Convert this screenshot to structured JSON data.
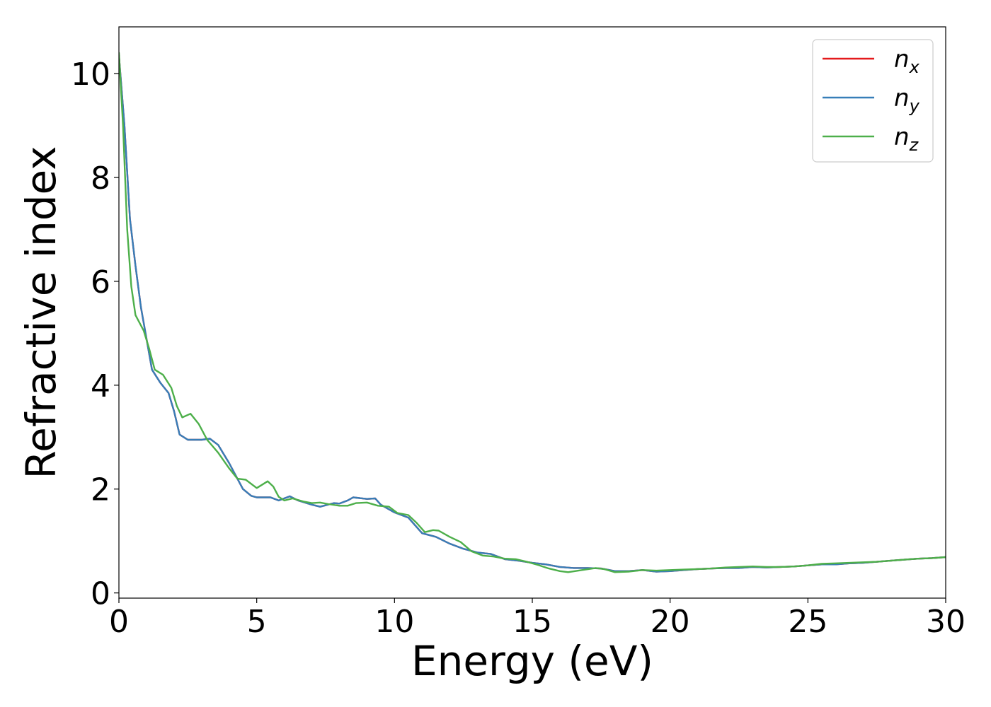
{
  "chart_data": {
    "type": "line",
    "title": "",
    "xlabel": "Energy (eV)",
    "ylabel": "Refractive index",
    "xlim": [
      0,
      30
    ],
    "ylim": [
      -0.1,
      10.9
    ],
    "xticks": [
      0,
      5,
      10,
      15,
      20,
      25,
      30
    ],
    "yticks": [
      0,
      2,
      4,
      6,
      8,
      10
    ],
    "grid": false,
    "legend_position": "top-right",
    "series": [
      {
        "name": "n",
        "subscript": "x",
        "color": "#e41a1c",
        "points": [
          [
            0,
            10.35
          ],
          [
            0.2,
            9.0
          ],
          [
            0.4,
            7.2
          ],
          [
            0.6,
            6.3
          ],
          [
            0.8,
            5.5
          ],
          [
            1.0,
            4.9
          ],
          [
            1.2,
            4.3
          ],
          [
            1.5,
            4.05
          ],
          [
            1.8,
            3.85
          ],
          [
            2.0,
            3.5
          ],
          [
            2.2,
            3.05
          ],
          [
            2.5,
            2.95
          ],
          [
            2.8,
            2.95
          ],
          [
            3.0,
            2.95
          ],
          [
            3.3,
            2.97
          ],
          [
            3.6,
            2.85
          ],
          [
            4.0,
            2.5
          ],
          [
            4.3,
            2.2
          ],
          [
            4.5,
            2.0
          ],
          [
            4.8,
            1.87
          ],
          [
            5.0,
            1.84
          ],
          [
            5.5,
            1.84
          ],
          [
            5.8,
            1.78
          ],
          [
            6.2,
            1.86
          ],
          [
            6.5,
            1.78
          ],
          [
            7.0,
            1.7
          ],
          [
            7.3,
            1.66
          ],
          [
            7.8,
            1.73
          ],
          [
            8.0,
            1.72
          ],
          [
            8.3,
            1.78
          ],
          [
            8.5,
            1.84
          ],
          [
            9.0,
            1.81
          ],
          [
            9.3,
            1.82
          ],
          [
            9.5,
            1.7
          ],
          [
            10.0,
            1.55
          ],
          [
            10.5,
            1.45
          ],
          [
            11.0,
            1.15
          ],
          [
            11.5,
            1.08
          ],
          [
            12.0,
            0.95
          ],
          [
            12.5,
            0.85
          ],
          [
            13.0,
            0.78
          ],
          [
            13.5,
            0.75
          ],
          [
            14.0,
            0.65
          ],
          [
            14.5,
            0.62
          ],
          [
            15.0,
            0.58
          ],
          [
            15.5,
            0.55
          ],
          [
            16.0,
            0.5
          ],
          [
            16.5,
            0.48
          ],
          [
            17.0,
            0.48
          ],
          [
            17.5,
            0.47
          ],
          [
            18.0,
            0.42
          ],
          [
            18.5,
            0.42
          ],
          [
            19.0,
            0.44
          ],
          [
            19.5,
            0.41
          ],
          [
            20.0,
            0.42
          ],
          [
            20.5,
            0.44
          ],
          [
            21.0,
            0.46
          ],
          [
            21.5,
            0.47
          ],
          [
            22.0,
            0.48
          ],
          [
            22.5,
            0.48
          ],
          [
            23.0,
            0.5
          ],
          [
            23.5,
            0.49
          ],
          [
            24.0,
            0.5
          ],
          [
            24.5,
            0.51
          ],
          [
            25.0,
            0.53
          ],
          [
            25.5,
            0.55
          ],
          [
            26.0,
            0.55
          ],
          [
            26.5,
            0.57
          ],
          [
            27.0,
            0.58
          ],
          [
            27.5,
            0.6
          ],
          [
            28.0,
            0.62
          ],
          [
            28.5,
            0.64
          ],
          [
            29.0,
            0.66
          ],
          [
            29.5,
            0.67
          ],
          [
            30.0,
            0.69
          ]
        ]
      },
      {
        "name": "n",
        "subscript": "y",
        "color": "#377eb8",
        "points": [
          [
            0,
            10.35
          ],
          [
            0.2,
            9.0
          ],
          [
            0.4,
            7.2
          ],
          [
            0.6,
            6.3
          ],
          [
            0.8,
            5.5
          ],
          [
            1.0,
            4.9
          ],
          [
            1.2,
            4.3
          ],
          [
            1.5,
            4.05
          ],
          [
            1.8,
            3.85
          ],
          [
            2.0,
            3.5
          ],
          [
            2.2,
            3.05
          ],
          [
            2.5,
            2.95
          ],
          [
            2.8,
            2.95
          ],
          [
            3.0,
            2.95
          ],
          [
            3.3,
            2.97
          ],
          [
            3.6,
            2.85
          ],
          [
            4.0,
            2.5
          ],
          [
            4.3,
            2.2
          ],
          [
            4.5,
            2.0
          ],
          [
            4.8,
            1.87
          ],
          [
            5.0,
            1.84
          ],
          [
            5.5,
            1.84
          ],
          [
            5.8,
            1.78
          ],
          [
            6.2,
            1.86
          ],
          [
            6.5,
            1.78
          ],
          [
            7.0,
            1.7
          ],
          [
            7.3,
            1.66
          ],
          [
            7.8,
            1.73
          ],
          [
            8.0,
            1.72
          ],
          [
            8.3,
            1.78
          ],
          [
            8.5,
            1.84
          ],
          [
            9.0,
            1.81
          ],
          [
            9.3,
            1.82
          ],
          [
            9.5,
            1.7
          ],
          [
            10.0,
            1.55
          ],
          [
            10.5,
            1.45
          ],
          [
            11.0,
            1.15
          ],
          [
            11.5,
            1.08
          ],
          [
            12.0,
            0.95
          ],
          [
            12.5,
            0.85
          ],
          [
            13.0,
            0.78
          ],
          [
            13.5,
            0.75
          ],
          [
            14.0,
            0.65
          ],
          [
            14.5,
            0.62
          ],
          [
            15.0,
            0.58
          ],
          [
            15.5,
            0.55
          ],
          [
            16.0,
            0.5
          ],
          [
            16.5,
            0.48
          ],
          [
            17.0,
            0.48
          ],
          [
            17.5,
            0.47
          ],
          [
            18.0,
            0.42
          ],
          [
            18.5,
            0.42
          ],
          [
            19.0,
            0.44
          ],
          [
            19.5,
            0.41
          ],
          [
            20.0,
            0.42
          ],
          [
            20.5,
            0.44
          ],
          [
            21.0,
            0.46
          ],
          [
            21.5,
            0.47
          ],
          [
            22.0,
            0.48
          ],
          [
            22.5,
            0.48
          ],
          [
            23.0,
            0.5
          ],
          [
            23.5,
            0.49
          ],
          [
            24.0,
            0.5
          ],
          [
            24.5,
            0.51
          ],
          [
            25.0,
            0.53
          ],
          [
            25.5,
            0.55
          ],
          [
            26.0,
            0.55
          ],
          [
            26.5,
            0.57
          ],
          [
            27.0,
            0.58
          ],
          [
            27.5,
            0.6
          ],
          [
            28.0,
            0.62
          ],
          [
            28.5,
            0.64
          ],
          [
            29.0,
            0.66
          ],
          [
            29.5,
            0.67
          ],
          [
            30.0,
            0.69
          ]
        ]
      },
      {
        "name": "n",
        "subscript": "z",
        "color": "#4daf4a",
        "points": [
          [
            0,
            10.4
          ],
          [
            0.15,
            9.0
          ],
          [
            0.3,
            7.0
          ],
          [
            0.45,
            5.9
          ],
          [
            0.6,
            5.35
          ],
          [
            0.9,
            5.05
          ],
          [
            1.1,
            4.7
          ],
          [
            1.3,
            4.3
          ],
          [
            1.6,
            4.2
          ],
          [
            1.9,
            3.95
          ],
          [
            2.1,
            3.6
          ],
          [
            2.3,
            3.38
          ],
          [
            2.6,
            3.45
          ],
          [
            2.9,
            3.25
          ],
          [
            3.2,
            2.95
          ],
          [
            3.6,
            2.7
          ],
          [
            4.0,
            2.4
          ],
          [
            4.3,
            2.2
          ],
          [
            4.6,
            2.18
          ],
          [
            5.0,
            2.02
          ],
          [
            5.4,
            2.15
          ],
          [
            5.6,
            2.05
          ],
          [
            5.8,
            1.85
          ],
          [
            6.0,
            1.78
          ],
          [
            6.3,
            1.82
          ],
          [
            6.7,
            1.76
          ],
          [
            7.0,
            1.73
          ],
          [
            7.3,
            1.74
          ],
          [
            7.6,
            1.71
          ],
          [
            8.0,
            1.68
          ],
          [
            8.3,
            1.68
          ],
          [
            8.6,
            1.73
          ],
          [
            9.0,
            1.74
          ],
          [
            9.4,
            1.68
          ],
          [
            9.8,
            1.66
          ],
          [
            10.1,
            1.54
          ],
          [
            10.5,
            1.5
          ],
          [
            10.8,
            1.35
          ],
          [
            11.1,
            1.17
          ],
          [
            11.4,
            1.21
          ],
          [
            11.6,
            1.2
          ],
          [
            12.0,
            1.08
          ],
          [
            12.4,
            0.98
          ],
          [
            12.8,
            0.8
          ],
          [
            13.2,
            0.72
          ],
          [
            13.6,
            0.7
          ],
          [
            14.0,
            0.66
          ],
          [
            14.4,
            0.65
          ],
          [
            14.8,
            0.6
          ],
          [
            15.2,
            0.54
          ],
          [
            15.6,
            0.47
          ],
          [
            16.0,
            0.42
          ],
          [
            16.3,
            0.4
          ],
          [
            16.8,
            0.44
          ],
          [
            17.3,
            0.48
          ],
          [
            17.6,
            0.46
          ],
          [
            18.0,
            0.4
          ],
          [
            18.5,
            0.41
          ],
          [
            19.0,
            0.44
          ],
          [
            19.5,
            0.43
          ],
          [
            20.0,
            0.44
          ],
          [
            20.5,
            0.45
          ],
          [
            21.0,
            0.46
          ],
          [
            21.5,
            0.47
          ],
          [
            22.0,
            0.49
          ],
          [
            22.5,
            0.5
          ],
          [
            23.0,
            0.51
          ],
          [
            23.5,
            0.5
          ],
          [
            24.0,
            0.5
          ],
          [
            24.5,
            0.51
          ],
          [
            25.0,
            0.53
          ],
          [
            25.5,
            0.56
          ],
          [
            26.0,
            0.57
          ],
          [
            26.5,
            0.58
          ],
          [
            27.0,
            0.59
          ],
          [
            27.5,
            0.6
          ],
          [
            28.0,
            0.62
          ],
          [
            28.5,
            0.64
          ],
          [
            29.0,
            0.66
          ],
          [
            29.5,
            0.67
          ],
          [
            30.0,
            0.69
          ]
        ]
      }
    ]
  }
}
